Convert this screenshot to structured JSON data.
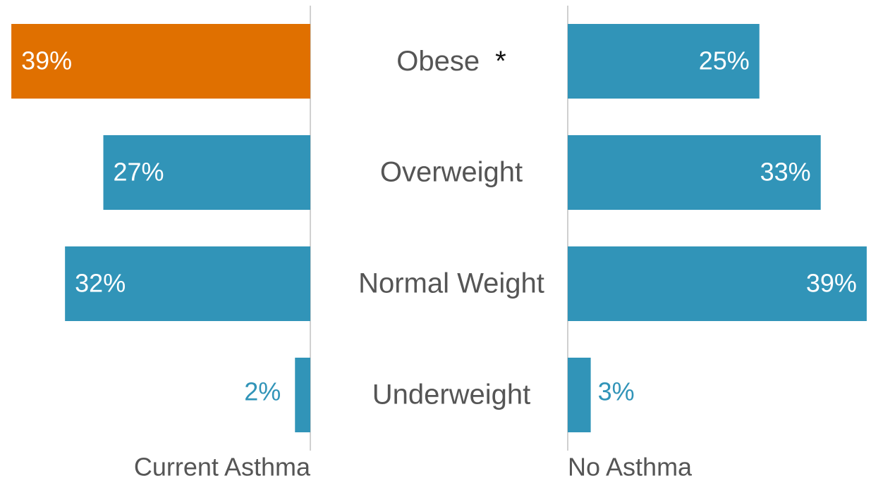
{
  "chart_data": {
    "type": "butterfly-bar",
    "categories": [
      "Obese",
      "Overweight",
      "Normal Weight",
      "Underweight"
    ],
    "annotation": "*",
    "series": [
      {
        "name": "Current Asthma",
        "color": "#3194b8",
        "colors": [
          "#e07000",
          "#3194b8",
          "#3194b8",
          "#3194b8"
        ],
        "values": [
          39,
          27,
          32,
          2
        ],
        "value_labels": [
          "39%",
          "27%",
          "32%",
          "2%"
        ]
      },
      {
        "name": "No Asthma",
        "color": "#3194b8",
        "values": [
          25,
          33,
          39,
          3
        ],
        "value_labels": [
          "25%",
          "33%",
          "39%",
          "3%"
        ]
      }
    ]
  }
}
